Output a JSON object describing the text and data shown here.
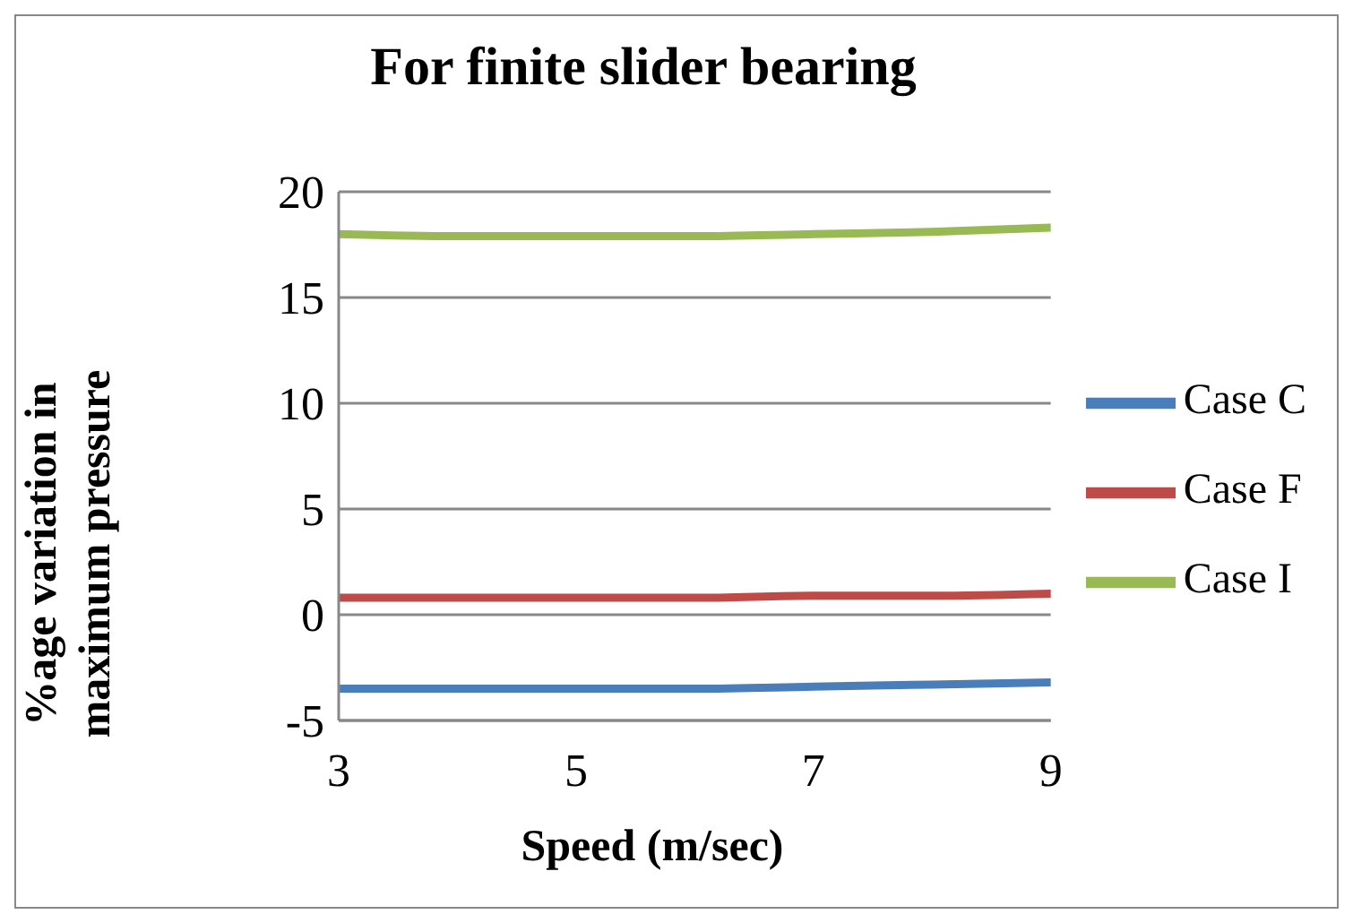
{
  "chart_data": {
    "type": "line",
    "title": "For finite slider bearing",
    "xlabel": "Speed  (m/sec)",
    "ylabel": "%age variation in maximum pressure",
    "x": [
      3,
      4,
      5,
      6,
      7,
      8,
      9
    ],
    "xlim": [
      3,
      9
    ],
    "xticks": [
      3,
      5,
      7,
      9
    ],
    "ylim": [
      -5,
      20
    ],
    "yticks": [
      -5,
      0,
      5,
      10,
      15,
      20
    ],
    "grid": "y",
    "legend": "right",
    "marker": "none",
    "line_style": "solid",
    "series": [
      {
        "name": "Case C",
        "color": "#4a7ebb",
        "values": [
          -3.5,
          -3.5,
          -3.5,
          -3.5,
          -3.4,
          -3.3,
          -3.2
        ]
      },
      {
        "name": "Case F",
        "color": "#be4b48",
        "values": [
          0.8,
          0.8,
          0.8,
          0.8,
          0.9,
          0.9,
          1.0
        ]
      },
      {
        "name": "Case I",
        "color": "#98b954",
        "values": [
          18.0,
          17.9,
          17.9,
          17.9,
          18.0,
          18.1,
          18.3
        ]
      }
    ]
  }
}
